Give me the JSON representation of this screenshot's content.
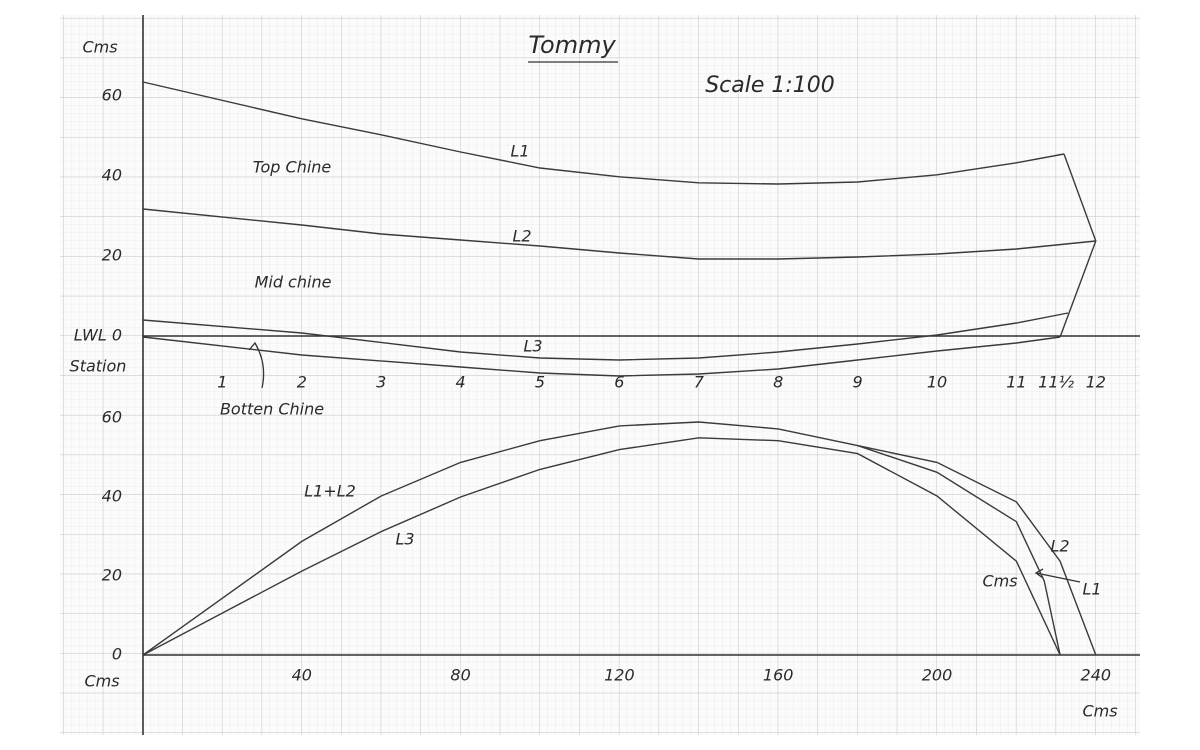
{
  "chart_data": [
    {
      "type": "line",
      "title": "Tommy",
      "subtitle": "Scale 1:100",
      "ylabel": "Cms",
      "xlabel": "Station",
      "xlim": [
        0,
        250
      ],
      "ylim": [
        -15,
        65
      ],
      "xticks": [
        {
          "value": 20,
          "label": "1"
        },
        {
          "value": 40,
          "label": "2"
        },
        {
          "value": 60,
          "label": "3"
        },
        {
          "value": 80,
          "label": "4"
        },
        {
          "value": 100,
          "label": "5"
        },
        {
          "value": 120,
          "label": "6"
        },
        {
          "value": 140,
          "label": "7"
        },
        {
          "value": 160,
          "label": "8"
        },
        {
          "value": 180,
          "label": "9"
        },
        {
          "value": 200,
          "label": "10"
        },
        {
          "value": 220,
          "label": "11"
        },
        {
          "value": 230,
          "label": "11½"
        },
        {
          "value": 240,
          "label": "12"
        }
      ],
      "yticks": [
        {
          "value": 0,
          "label": "LWL 0"
        },
        20,
        40,
        60
      ],
      "series": [
        {
          "name": "L1",
          "color": "#3a3a3a",
          "x": [
            0,
            40,
            60,
            80,
            100,
            120,
            140,
            160,
            180,
            200,
            220,
            232
          ],
          "values": [
            63.5,
            54.3,
            50.3,
            46,
            42,
            39.8,
            38.3,
            38,
            38.5,
            40.3,
            43.3,
            45.5
          ]
        },
        {
          "name": "L2",
          "color": "#3a3a3a",
          "x": [
            0,
            40,
            60,
            80,
            100,
            120,
            140,
            160,
            180,
            200,
            220,
            240
          ],
          "values": [
            31.75,
            27.75,
            25.5,
            24,
            22.5,
            20.75,
            19.25,
            19.25,
            19.75,
            20.5,
            21.75,
            23.75
          ]
        },
        {
          "name": "L3",
          "color": "#3a3a3a",
          "x": [
            0,
            40,
            80,
            100,
            120,
            140,
            160,
            180,
            200,
            220,
            233
          ],
          "values": [
            4,
            0.75,
            -4,
            -5.5,
            -6,
            -5.5,
            -4,
            -2,
            0.25,
            3.25,
            5.75
          ]
        },
        {
          "color": "#3a3a3a",
          "x": [
            0,
            40,
            80,
            100,
            120,
            140,
            160,
            180,
            200,
            220,
            231
          ],
          "values": [
            -0.25,
            -4.75,
            -7.75,
            -9.25,
            -10,
            -9.5,
            -8.25,
            -6,
            -3.75,
            -1.75,
            -0.25
          ]
        },
        {
          "color": "#3a3a3a",
          "x": [
            232,
            240,
            231
          ],
          "values": [
            45.5,
            23.75,
            -0.25
          ]
        }
      ],
      "annotations": [
        "Top Chine",
        "Mid chine",
        "Botten Chine"
      ]
    },
    {
      "type": "line",
      "ylabel": "Cms",
      "xlabel": "Cms",
      "xlim": [
        0,
        250
      ],
      "ylim": [
        0,
        60
      ],
      "xticks": [
        40,
        80,
        120,
        160,
        200,
        240
      ],
      "yticks": [
        0,
        20,
        40,
        60
      ],
      "series": [
        {
          "name": "L1+L2",
          "color": "#3a3a3a",
          "x": [
            0,
            40,
            60,
            80,
            100,
            120,
            140,
            160,
            180
          ],
          "values": [
            0,
            28.75,
            40.25,
            48.75,
            54.25,
            58,
            59,
            57.25,
            53
          ]
        },
        {
          "name": "L1",
          "color": "#3a3a3a",
          "x": [
            180,
            200,
            220,
            227,
            231
          ],
          "values": [
            53,
            46.25,
            33.75,
            18.75,
            0
          ]
        },
        {
          "name": "L2",
          "color": "#3a3a3a",
          "x": [
            180,
            200,
            220,
            231,
            240
          ],
          "values": [
            53,
            48.75,
            38.75,
            23.75,
            0
          ]
        },
        {
          "name": "L3",
          "color": "#3a3a3a",
          "x": [
            0,
            40,
            60,
            80,
            100,
            120,
            140,
            160,
            180,
            200,
            220,
            231
          ],
          "values": [
            0,
            21.25,
            31.25,
            40,
            47,
            52,
            55,
            54.25,
            51,
            40.25,
            23.75,
            0
          ]
        }
      ],
      "annotations": [
        "Cms"
      ]
    }
  ]
}
